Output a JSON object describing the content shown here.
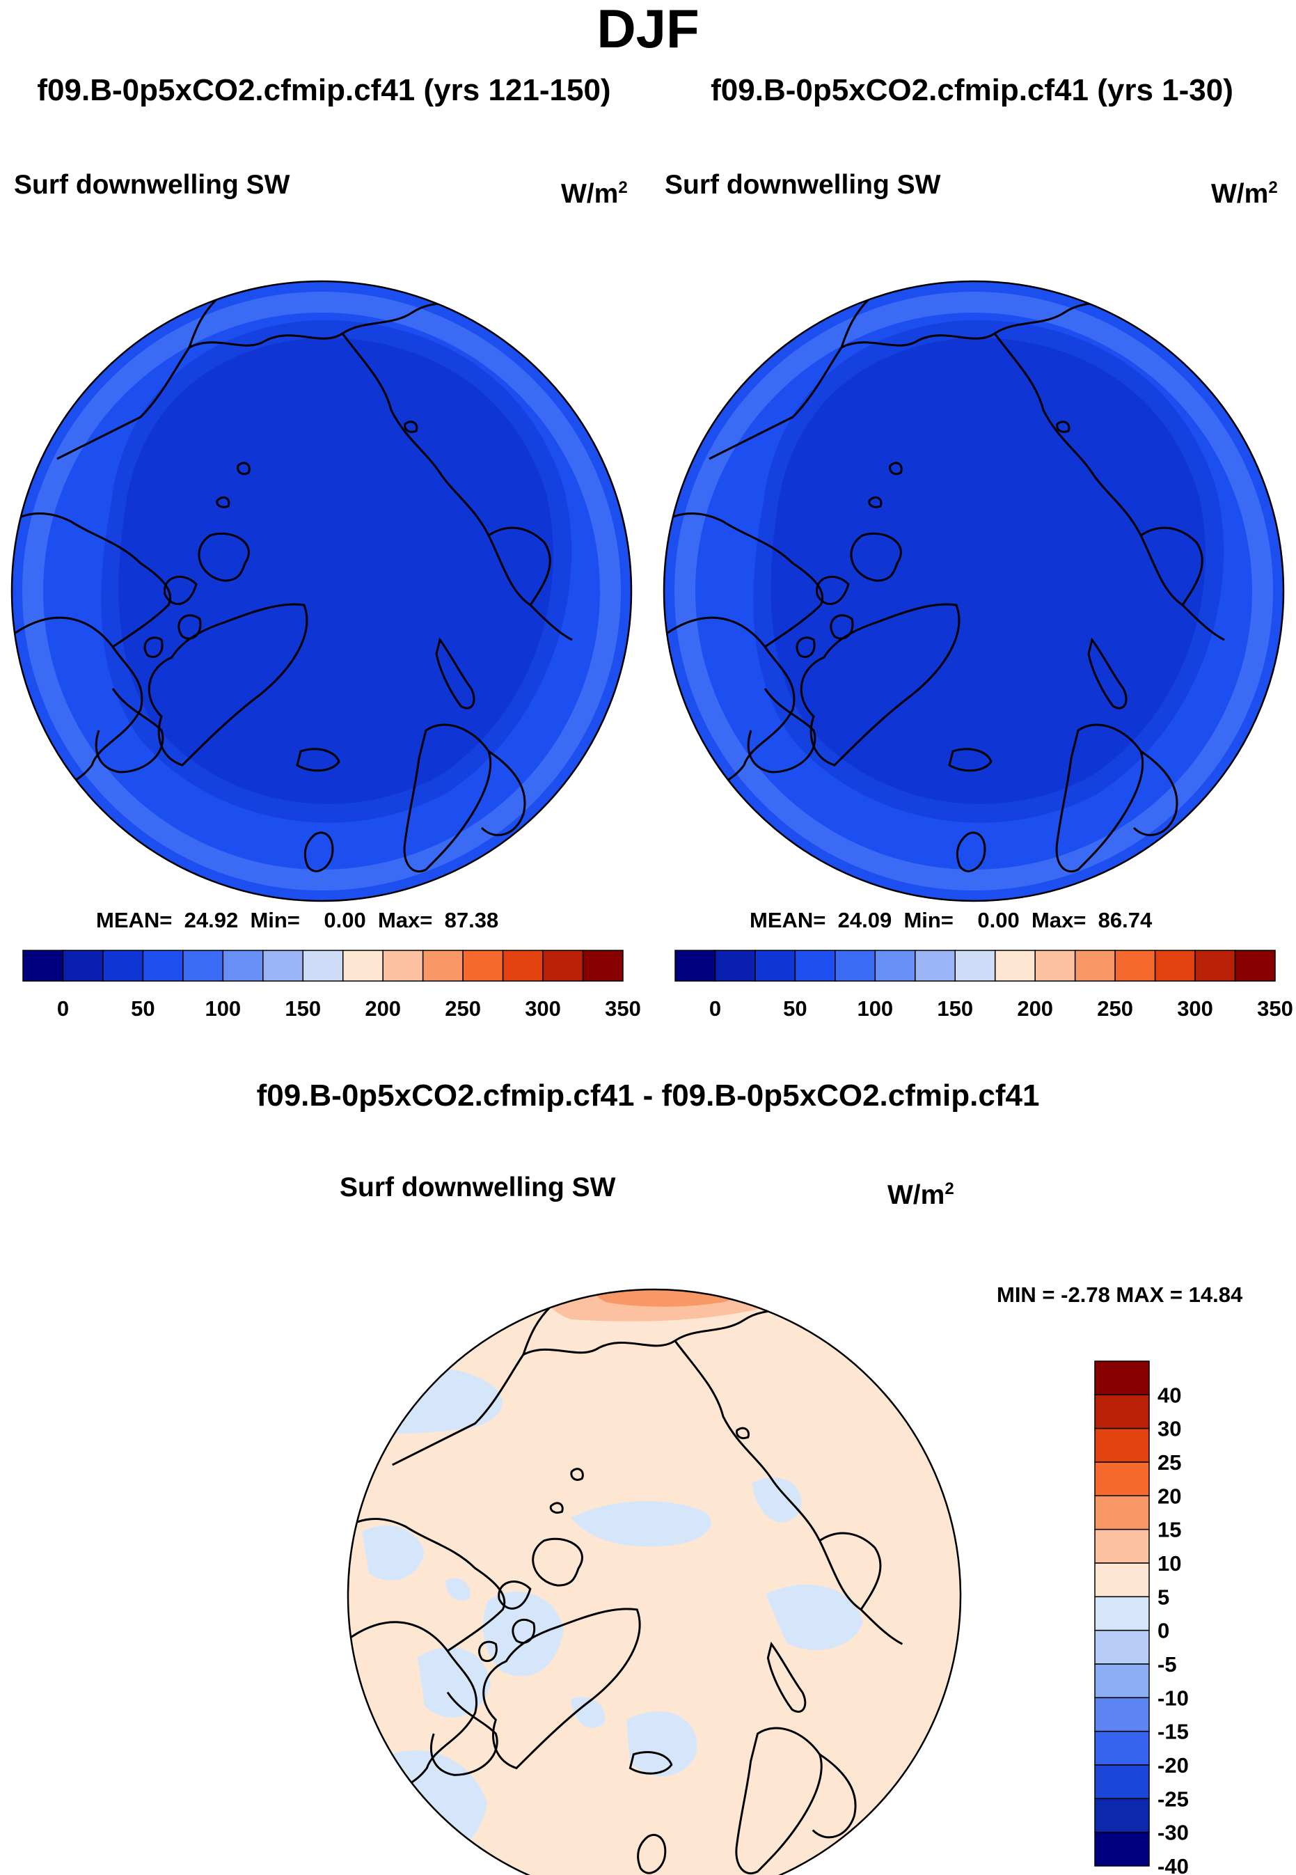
{
  "season": "DJF",
  "panels": [
    {
      "case_title": "f09.B-0p5xCO2.cfmip.cf41 (yrs 121-150)",
      "variable": "Surf downwelling SW",
      "units_base": "W/m",
      "units_exp": "2",
      "stats": {
        "mean_label": "MEAN=",
        "mean": "24.92",
        "min_label": "Min=",
        "min": "0.00",
        "max_label": "Max=",
        "max": "87.38"
      }
    },
    {
      "case_title": "f09.B-0p5xCO2.cfmip.cf41 (yrs 1-30)",
      "variable": "Surf downwelling SW",
      "units_base": "W/m",
      "units_exp": "2",
      "stats": {
        "mean_label": "MEAN=",
        "mean": "24.09",
        "min_label": "Min=",
        "min": "0.00",
        "max_label": "Max=",
        "max": "86.74"
      }
    }
  ],
  "abs_colorbar": {
    "colors": [
      "#00007f",
      "#0a1fb0",
      "#0f35d4",
      "#1d4ff0",
      "#3b6bf5",
      "#6690f5",
      "#9ab4f5",
      "#cfdcf7",
      "#fde7d3",
      "#fbc1a1",
      "#f99867",
      "#f66a2e",
      "#e2420f",
      "#b82106",
      "#860000"
    ],
    "labels": [
      "0",
      "50",
      "100",
      "150",
      "200",
      "250",
      "300",
      "350"
    ]
  },
  "diff_panel": {
    "title": "f09.B-0p5xCO2.cfmip.cf41 - f09.B-0p5xCO2.cfmip.cf41",
    "variable": "Surf downwelling SW",
    "units_base": "W/m",
    "units_exp": "2",
    "minmax": "MIN =  -2.78 MAX =  14.84"
  },
  "diff_colorbar": {
    "colors_top_to_bottom": [
      "#860000",
      "#b82106",
      "#e2420f",
      "#f66a2e",
      "#f99867",
      "#fbc1a1",
      "#fde7d3",
      "#d6e6fa",
      "#b7cdf7",
      "#8caef5",
      "#5d86f2",
      "#3563ee",
      "#1b46d8",
      "#0c28ad",
      "#00007f"
    ],
    "labels_top_to_bottom": [
      "40",
      "30",
      "25",
      "20",
      "15",
      "10",
      "5",
      "0",
      "-5",
      "-10",
      "-15",
      "-20",
      "-25",
      "-30",
      "-40"
    ]
  },
  "map_colors": {
    "abs_outer": "#1d4ff0",
    "abs_ring": "#1541e0",
    "abs_inner": "#0f35d4",
    "abs_edge": "#3b6bf5",
    "diff_base": "#fde7d3",
    "diff_neg": "#d6e6fa",
    "diff_pos": "#f99867",
    "diff_pos_light": "#fbc1a1",
    "coast": "#000000"
  }
}
